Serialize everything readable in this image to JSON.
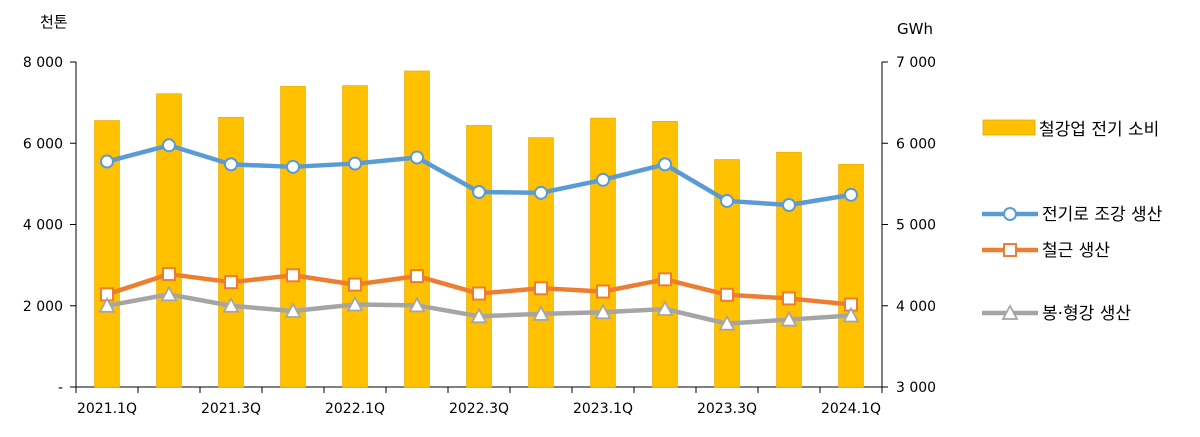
{
  "chart_data": {
    "type": "bar+line",
    "categories": [
      "2021.1Q",
      "2021.2Q",
      "2021.3Q",
      "2021.4Q",
      "2022.1Q",
      "2022.2Q",
      "2022.3Q",
      "2022.4Q",
      "2023.1Q",
      "2023.2Q",
      "2023.3Q",
      "2023.4Q",
      "2024.1Q"
    ],
    "x_tick_labels": [
      "2021.1Q",
      "2021.3Q",
      "2022.1Q",
      "2022.3Q",
      "2023.1Q",
      "2023.3Q",
      "2024.1Q"
    ],
    "x_tick_indices": [
      0,
      2,
      4,
      6,
      8,
      10,
      12
    ],
    "left_axis": {
      "unit": "천톤",
      "ylim": [
        0,
        8000
      ],
      "ticks": [
        0,
        2000,
        4000,
        6000,
        8000
      ],
      "tick_labels": [
        "-",
        "2 000",
        "4 000",
        "6 000",
        "8 000"
      ]
    },
    "right_axis": {
      "unit": "GWh",
      "ylim": [
        3000,
        7000
      ],
      "ticks": [
        3000,
        4000,
        5000,
        6000,
        7000
      ],
      "tick_labels": [
        "3 000",
        "4 000",
        "5 000",
        "6 000",
        "7 000"
      ]
    },
    "bar_series": {
      "name": "철강업 전기 소비",
      "axis": "right",
      "color": "#FFC000",
      "values": [
        6280,
        6610,
        6320,
        6700,
        6710,
        6890,
        6220,
        6070,
        6310,
        6270,
        5800,
        5890,
        5740
      ]
    },
    "line_series": [
      {
        "name": "전기로 조강 생산",
        "axis": "left",
        "color": "#5B9BD5",
        "marker": "circle",
        "values": [
          5550,
          5950,
          5480,
          5420,
          5500,
          5650,
          4800,
          4780,
          5100,
          5480,
          4580,
          4480,
          4730
        ]
      },
      {
        "name": "철근 생산",
        "axis": "left",
        "color": "#ED7D31",
        "marker": "square",
        "values": [
          2280,
          2780,
          2580,
          2750,
          2520,
          2730,
          2300,
          2430,
          2350,
          2650,
          2270,
          2180,
          2030
        ]
      },
      {
        "name": "봉·형강 생산",
        "axis": "left",
        "color": "#A5A5A5",
        "marker": "triangle",
        "values": [
          2000,
          2280,
          2000,
          1870,
          2030,
          2010,
          1740,
          1800,
          1840,
          1920,
          1560,
          1660,
          1760
        ]
      }
    ],
    "legend_position": "right",
    "grid": false
  }
}
